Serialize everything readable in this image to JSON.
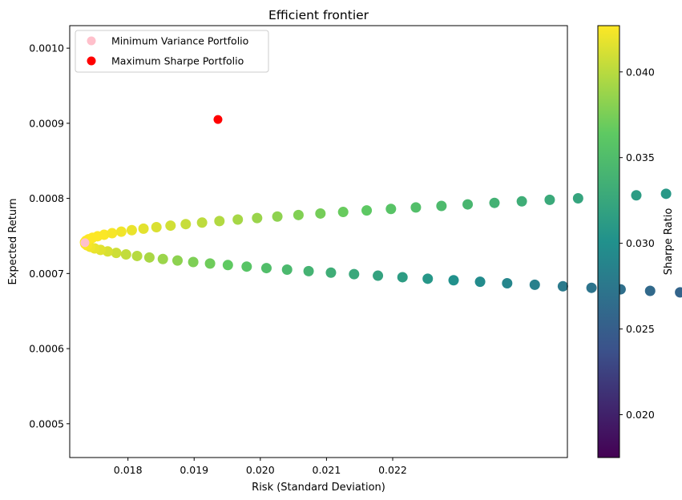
{
  "chart_data": {
    "type": "scatter",
    "title": "Efficient frontier",
    "xlabel": "Risk (Standard Deviation)",
    "ylabel": "Expected Return",
    "xlim": [
      0.01712,
      0.02464
    ],
    "ylim": [
      0.000455,
      0.00103
    ],
    "x_ticks": [
      0.018,
      0.019,
      0.02,
      0.021,
      0.022
    ],
    "x_tick_labels": [
      "0.018",
      "0.019",
      "0.020",
      "0.021",
      "0.022"
    ],
    "y_ticks": [
      0.0005,
      0.0006,
      0.0007,
      0.0008,
      0.0009,
      0.001
    ],
    "y_tick_labels": [
      "0.0005",
      "0.0006",
      "0.0007",
      "0.0008",
      "0.0009",
      "0.0010"
    ],
    "grid": false,
    "legend_position": "top-left",
    "frontier": {
      "min_variance_risk": 0.01735,
      "min_variance_return": 0.000741,
      "curvature": 89940,
      "return_range": [
        0.000475,
        0.001
      ],
      "colormap": "viridis",
      "colormap_stops": [
        "#440154",
        "#3b528b",
        "#21918c",
        "#5ec962",
        "#fde725"
      ]
    },
    "special_points": [
      {
        "name": "Minimum Variance Portfolio",
        "x": 0.01735,
        "y": 0.000741,
        "color": "#ffc0cb"
      },
      {
        "name": "Maximum Sharpe Portfolio",
        "x": 0.01936,
        "y": 0.000905,
        "color": "#ff0000"
      }
    ],
    "colorbar": {
      "label": "Sharpe Ratio",
      "range": [
        0.0175,
        0.0427
      ],
      "ticks": [
        0.02,
        0.025,
        0.03,
        0.035,
        0.04
      ],
      "tick_labels": [
        "0.020",
        "0.025",
        "0.030",
        "0.035",
        "0.040"
      ]
    }
  }
}
